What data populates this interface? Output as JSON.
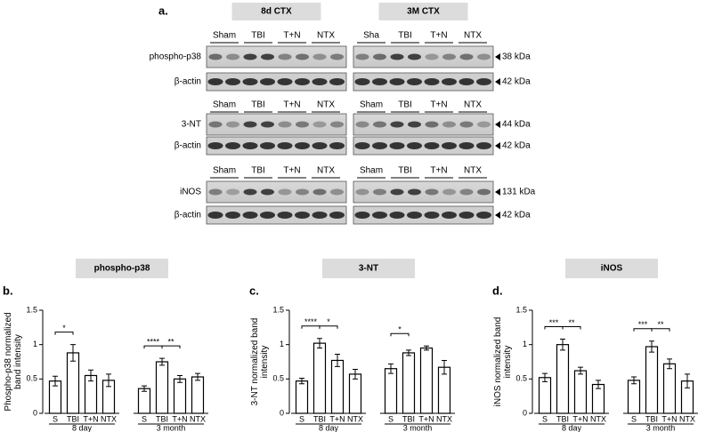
{
  "figure_a": {
    "label": "a.",
    "headers": [
      "8d CTX",
      "3M CTX"
    ],
    "rows": [
      {
        "protein": "phospho-p38",
        "loading": "β-actin",
        "lanes_left": [
          "Sham",
          "TBI",
          "T+N",
          "NTX"
        ],
        "lanes_right": [
          "Sha",
          "TBI",
          "T+N",
          "NTX"
        ],
        "kda": "38 kDa",
        "loading_kda": "42 kDa"
      },
      {
        "protein": "3-NT",
        "loading": "β-actin",
        "lanes_left": [
          "Sham",
          "TBI",
          "T+N",
          "NTX"
        ],
        "lanes_right": [
          "Sham",
          "TBI",
          "T+N",
          "NTX"
        ],
        "kda": "44 kDa",
        "loading_kda": "42 kDa"
      },
      {
        "protein": "iNOS",
        "loading": "β-actin",
        "lanes_left": [
          "Sham",
          "TBI",
          "T+N",
          "NTX"
        ],
        "lanes_right": [
          "Sham",
          "TBI",
          "T+N",
          "NTX"
        ],
        "kda": "131 kDa",
        "loading_kda": "42 kDa"
      }
    ]
  },
  "chart_data": [
    {
      "type": "bar",
      "panel": "b.",
      "title": "phospho-p38",
      "ylabel": "Phospho-p38 normalized band intensity",
      "ylim": [
        0,
        1.5
      ],
      "yticks": [
        0,
        0.5,
        1,
        1.5
      ],
      "color": "#ffffff",
      "groups": [
        {
          "label": "8 day",
          "categories": [
            "S",
            "TBI",
            "T+N",
            "NTX"
          ],
          "values": [
            0.47,
            0.88,
            0.55,
            0.48
          ],
          "errors": [
            0.07,
            0.12,
            0.08,
            0.09
          ],
          "significance": [
            "*"
          ]
        },
        {
          "label": "3 month",
          "categories": [
            "S",
            "TBI",
            "T+N",
            "NTX"
          ],
          "values": [
            0.36,
            0.75,
            0.5,
            0.53
          ],
          "errors": [
            0.04,
            0.05,
            0.05,
            0.05
          ],
          "significance": [
            "****",
            "**"
          ]
        }
      ]
    },
    {
      "type": "bar",
      "panel": "c.",
      "title": "3-NT",
      "ylabel": "3-NT normalized band intensity",
      "ylim": [
        0,
        1.5
      ],
      "yticks": [
        0,
        0.5,
        1,
        1.5
      ],
      "color": "#ffffff",
      "groups": [
        {
          "label": "8 day",
          "categories": [
            "S",
            "TBI",
            "T+N",
            "NTX"
          ],
          "values": [
            0.47,
            1.02,
            0.77,
            0.57
          ],
          "errors": [
            0.04,
            0.07,
            0.09,
            0.07
          ],
          "significance": [
            "****",
            "*"
          ]
        },
        {
          "label": "3 month",
          "categories": [
            "S",
            "TBI",
            "T+N",
            "NTX"
          ],
          "values": [
            0.65,
            0.88,
            0.95,
            0.67
          ],
          "errors": [
            0.07,
            0.04,
            0.03,
            0.1
          ],
          "significance": [
            "*"
          ]
        }
      ]
    },
    {
      "type": "bar",
      "panel": "d.",
      "title": "iNOS",
      "ylabel": "iNOS normalized band intensity",
      "ylim": [
        0,
        1.5
      ],
      "yticks": [
        0,
        0.5,
        1,
        1.5
      ],
      "color": "#ffffff",
      "groups": [
        {
          "label": "8 day",
          "categories": [
            "S",
            "TBI",
            "T+N",
            "NTX"
          ],
          "values": [
            0.52,
            1.0,
            0.62,
            0.42
          ],
          "errors": [
            0.06,
            0.08,
            0.05,
            0.06
          ],
          "significance": [
            "***",
            "**"
          ]
        },
        {
          "label": "3 month",
          "categories": [
            "S",
            "TBI",
            "T+N",
            "NTX"
          ],
          "values": [
            0.48,
            0.97,
            0.72,
            0.47
          ],
          "errors": [
            0.05,
            0.08,
            0.07,
            0.1
          ],
          "significance": [
            "***",
            "**"
          ]
        }
      ]
    }
  ]
}
